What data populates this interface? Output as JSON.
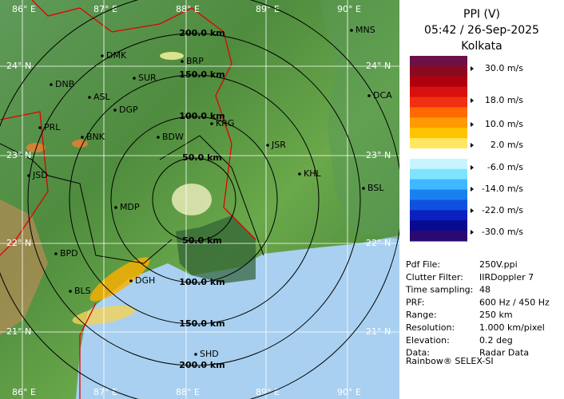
{
  "header": {
    "title": "PPI (V)",
    "time": "05:42 / 26-Sep-2025",
    "station": "Kolkata"
  },
  "legend": [
    "30.0 m/s",
    "18.0 m/s",
    "10.0 m/s",
    "2.0 m/s",
    "-6.0 m/s",
    "-14.0 m/s",
    "-22.0 m/s",
    "-30.0 m/s"
  ],
  "info": [
    [
      "Pdf File:",
      "250V.ppi"
    ],
    [
      "Clutter Filter:",
      "IIRDoppler 7"
    ],
    [
      "Time sampling:",
      "48"
    ],
    [
      "PRF:",
      "600 Hz / 450 Hz"
    ],
    [
      "Range:",
      "250 km"
    ],
    [
      "Resolution:",
      "1.000 km/pixel"
    ],
    [
      "Elevation:",
      "0.2 deg"
    ],
    [
      "Data:",
      "Radar Data"
    ]
  ],
  "footer": "Rainbow® SELEX-SI",
  "map": {
    "longitudes": [
      "86° E",
      "87° E",
      "88° E",
      "89° E",
      "90° E"
    ],
    "latitudes": [
      "24° N",
      "23° N",
      "22° N",
      "21° N"
    ],
    "rings": [
      "50.0 km",
      "100.0 km",
      "150.0 km",
      "200.0 km"
    ],
    "cities": [
      "MNS",
      "DMK",
      "BRP",
      "DNB",
      "SUR",
      "ASL",
      "DCA",
      "DGP",
      "KRG",
      "PRL",
      "BNK",
      "BDW",
      "JSR",
      "JSD",
      "KHL",
      "BSL",
      "MDP",
      "BPD",
      "DGH",
      "BLS",
      "SHD"
    ]
  }
}
